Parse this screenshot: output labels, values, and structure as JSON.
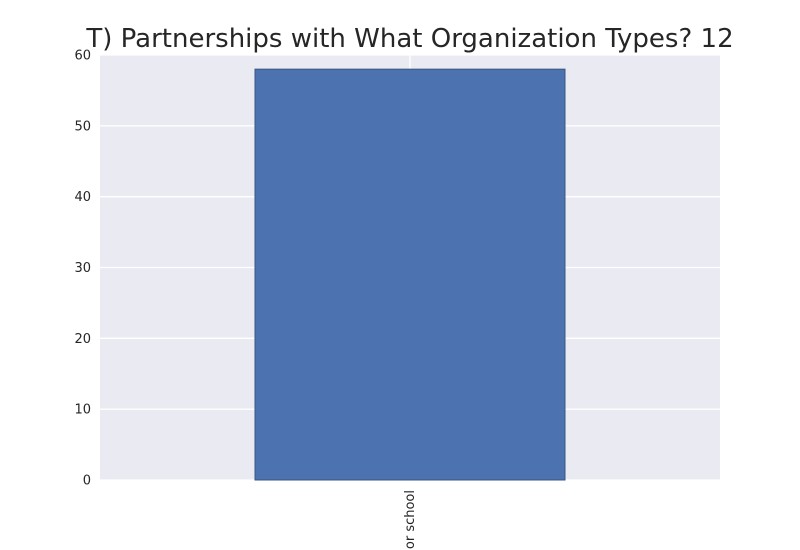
{
  "chart_data": {
    "type": "bar",
    "title": "T) Partnerships with What Organization Types? 12",
    "xlabel": "",
    "ylabel": "",
    "categories": [
      "or school"
    ],
    "values": [
      58
    ],
    "ylim": [
      0,
      60
    ],
    "yticks": [
      0,
      10,
      20,
      30,
      40,
      50,
      60
    ],
    "grid": true,
    "legend": "none",
    "colors": {
      "bar": "#4c72b0",
      "bar_edge": "#3a5680",
      "plot_background": "#eaeaf2",
      "grid": "#ffffff",
      "text": "#262626"
    }
  }
}
